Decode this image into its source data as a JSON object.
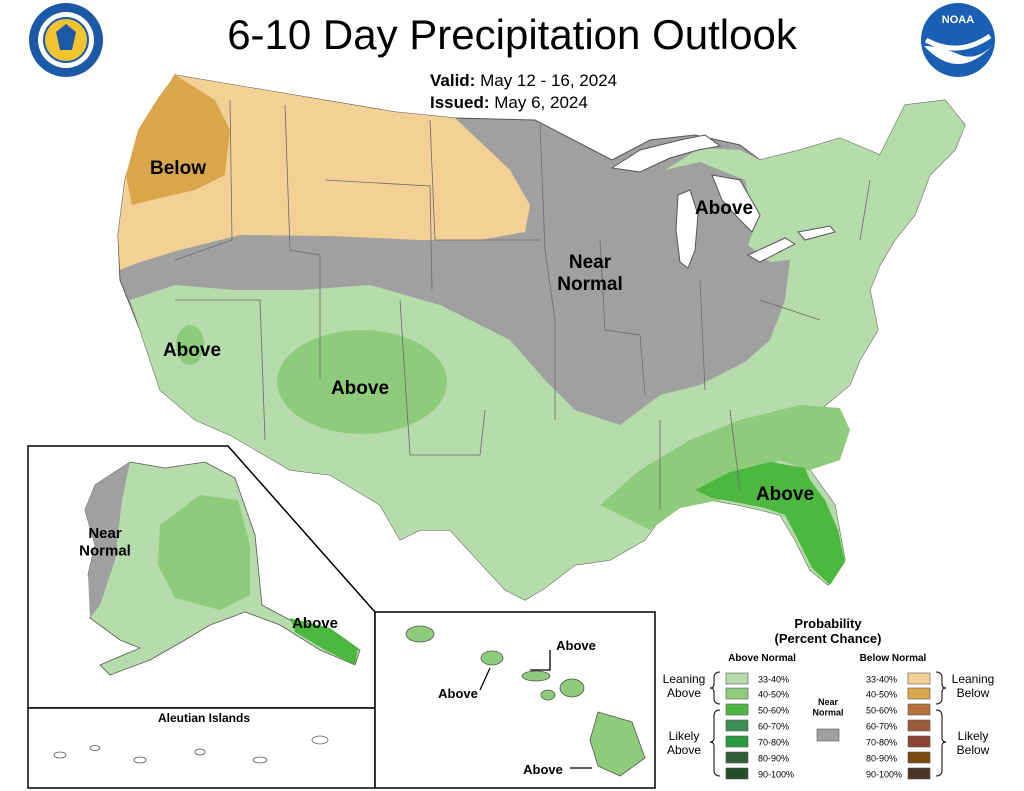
{
  "header": {
    "title": "6-10 Day Precipitation Outlook",
    "valid_label": "Valid:",
    "valid_value": "May 12 - 16, 2024",
    "issued_label": "Issued:",
    "issued_value": "May 6, 2024"
  },
  "logos": {
    "left": "department-of-commerce-seal",
    "right": "noaa-logo",
    "noaa_text": "NOAA"
  },
  "map_labels": {
    "pacific_nw": "Below",
    "central": "Near\nNormal",
    "great_lakes": "Above",
    "california": "Above",
    "southwest": "Above",
    "southeast": "Above",
    "alaska_west": "Near\nNormal",
    "alaska_southeast": "Above",
    "aleutian_title": "Aleutian Islands",
    "hawaii_a": "Above",
    "hawaii_b": "Above",
    "hawaii_c": "Above"
  },
  "colors": {
    "above_33_40": "#b5dcaa",
    "above_40_50": "#8ecb7a",
    "above_50_60": "#4cb840",
    "above_60_70": "#3c8f54",
    "above_70_80": "#2a9a3e",
    "above_80_90": "#2f5e36",
    "above_90_100": "#244d2a",
    "near_normal": "#a0a0a0",
    "below_33_40": "#f3d195",
    "below_40_50": "#d9a64b",
    "below_50_60": "#b5703b",
    "below_60_70": "#9e5a3c",
    "below_70_80": "#8b4333",
    "below_80_90": "#7a4a10",
    "below_90_100": "#4a3526"
  },
  "legend": {
    "title": "Probability",
    "subtitle": "(Percent Chance)",
    "above_header": "Above Normal",
    "below_header": "Below Normal",
    "near_label": "Near\nNormal",
    "leaning_above": "Leaning\nAbove",
    "likely_above": "Likely\nAbove",
    "leaning_below": "Leaning\nBelow",
    "likely_below": "Likely\nBelow",
    "bins": [
      "33-40%",
      "40-50%",
      "50-60%",
      "60-70%",
      "70-80%",
      "80-90%",
      "90-100%"
    ]
  }
}
